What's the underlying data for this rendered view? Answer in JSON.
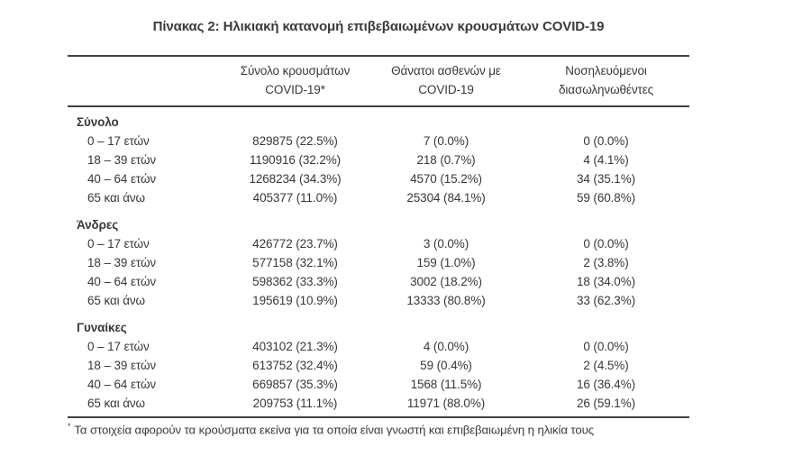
{
  "title": "Πίνακας 2: Ηλικιακή κατανομή επιβεβαιωμένων κρουσμάτων COVID-19",
  "table": {
    "col_headers": [
      {
        "line1": "Σύνολο κρουσμάτων",
        "line2": "COVID-19*"
      },
      {
        "line1": "Θάνατοι ασθενών με",
        "line2": "COVID-19"
      },
      {
        "line1": "Νοσηλευόμενοι",
        "line2": "διασωληνωθέντες"
      }
    ],
    "sections": [
      {
        "label": "Σύνολο",
        "rows": [
          {
            "label": "0 – 17 ετών",
            "cases": "829875 (22.5%)",
            "deaths": "7 (0.0%)",
            "intubated": "0 (0.0%)"
          },
          {
            "label": "18 – 39 ετών",
            "cases": "1190916 (32.2%)",
            "deaths": "218 (0.7%)",
            "intubated": "4 (4.1%)"
          },
          {
            "label": "40 – 64 ετών",
            "cases": "1268234 (34.3%)",
            "deaths": "4570 (15.2%)",
            "intubated": "34 (35.1%)"
          },
          {
            "label": "65 και άνω",
            "cases": "405377 (11.0%)",
            "deaths": "25304 (84.1%)",
            "intubated": "59 (60.8%)"
          }
        ]
      },
      {
        "label": "Άνδρες",
        "rows": [
          {
            "label": "0 – 17 ετών",
            "cases": "426772 (23.7%)",
            "deaths": "3 (0.0%)",
            "intubated": "0 (0.0%)"
          },
          {
            "label": "18 – 39 ετών",
            "cases": "577158 (32.1%)",
            "deaths": "159 (1.0%)",
            "intubated": "2 (3.8%)"
          },
          {
            "label": "40 – 64 ετών",
            "cases": "598362 (33.3%)",
            "deaths": "3002 (18.2%)",
            "intubated": "18 (34.0%)"
          },
          {
            "label": "65 και άνω",
            "cases": "195619 (10.9%)",
            "deaths": "13333 (80.8%)",
            "intubated": "33 (62.3%)"
          }
        ]
      },
      {
        "label": "Γυναίκες",
        "rows": [
          {
            "label": "0 – 17 ετών",
            "cases": "403102 (21.3%)",
            "deaths": "4 (0.0%)",
            "intubated": "0 (0.0%)"
          },
          {
            "label": "18 – 39 ετών",
            "cases": "613752 (32.4%)",
            "deaths": "59 (0.4%)",
            "intubated": "2 (4.5%)"
          },
          {
            "label": "40 – 64 ετών",
            "cases": "669857 (35.3%)",
            "deaths": "1568 (11.5%)",
            "intubated": "16 (36.4%)"
          },
          {
            "label": "65 και άνω",
            "cases": "209753 (11.1%)",
            "deaths": "11971 (88.0%)",
            "intubated": "26 (59.1%)"
          }
        ]
      }
    ]
  },
  "footnote": {
    "marker": "*",
    "text": "Τα στοιχεία αφορούν τα κρούσματα εκείνα για τα οποία είναι γνωστή και επιβεβαιωμένη η ηλικία τους"
  },
  "colors": {
    "text": "#383838",
    "rule": "#414141",
    "background": "#ffffff"
  }
}
